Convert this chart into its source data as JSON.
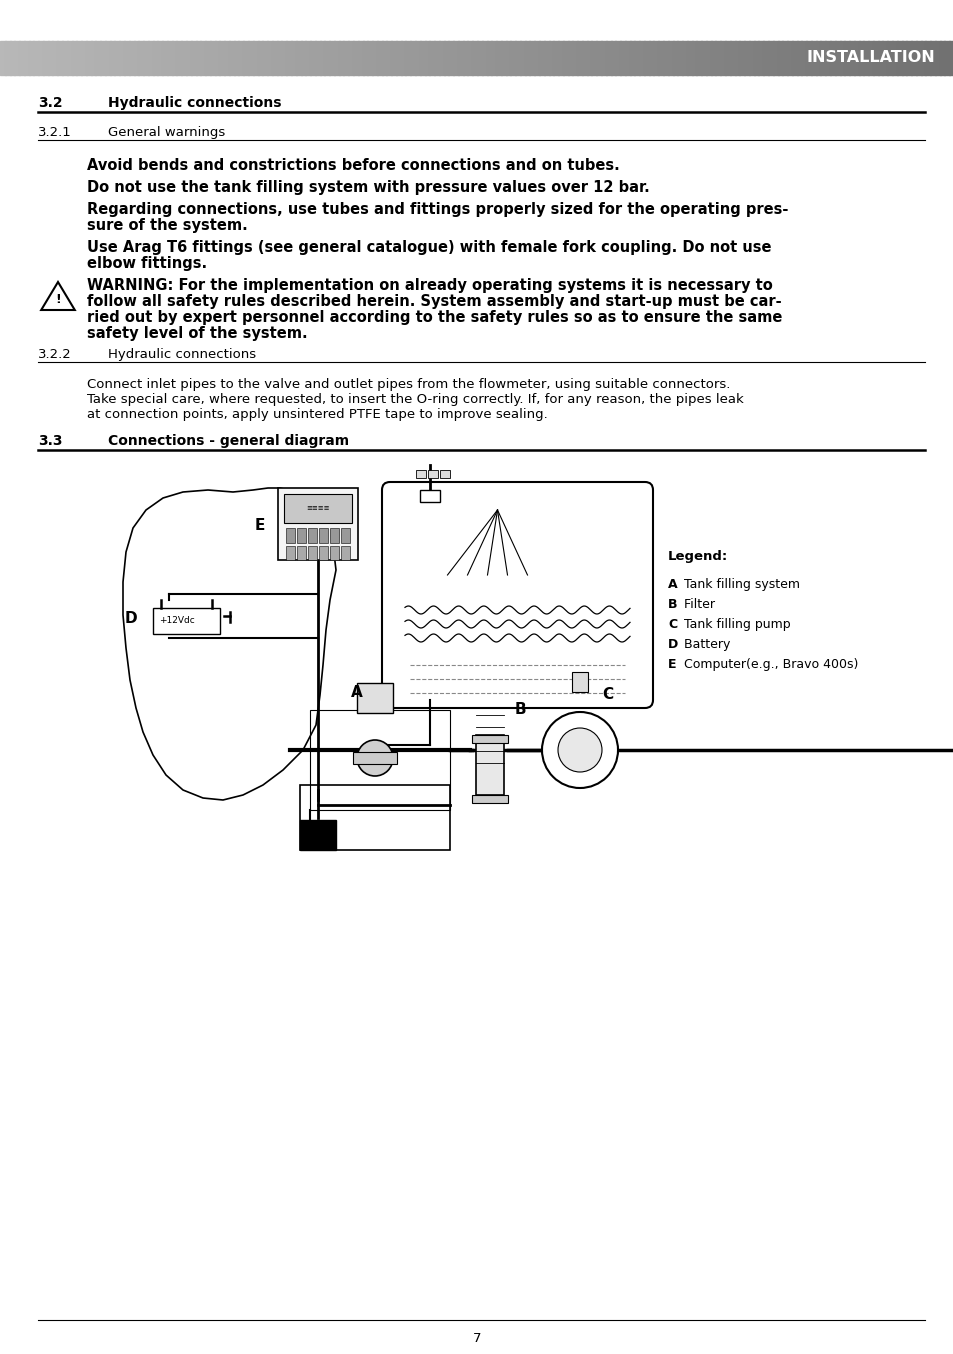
{
  "page_bg": "#ffffff",
  "header_text": "INSTALLATION",
  "header_text_color": "#ffffff",
  "section_32_num": "3.2",
  "section_32_title": "Hydraulic connections",
  "section_321_num": "3.2.1",
  "section_321_title": "General warnings",
  "bold_para1": "Avoid bends and constrictions before connections and on tubes.",
  "bold_para2": "Do not use the tank filling system with pressure values over 12 bar.",
  "bold_para3_l1": "Regarding connections, use tubes and fittings properly sized for the operating pres-",
  "bold_para3_l2": "sure of the system.",
  "bold_para4_l1": "Use Arag T6 fittings (see general catalogue) with female fork coupling. Do not use",
  "bold_para4_l2": "elbow fittings.",
  "warn_l1": "WARNING: For the implementation on already operating systems it is necessary to",
  "warn_l2": "follow all safety rules described herein. System assembly and start-up must be car-",
  "warn_l3": "ried out by expert personnel according to the safety rules so as to ensure the same",
  "warn_l4": "safety level of the system.",
  "section_322_num": "3.2.2",
  "section_322_title": "Hydraulic connections",
  "body_322_l1": "Connect inlet pipes to the valve and outlet pipes from the flowmeter, using suitable connectors.",
  "body_322_l2": "Take special care, where requested, to insert the O-ring correctly. If, for any reason, the pipes leak",
  "body_322_l3": "at connection points, apply unsintered PTFE tape to improve sealing.",
  "section_33_num": "3.3",
  "section_33_title": "Connections - general diagram",
  "legend_title": "Legend:",
  "legend_items": [
    {
      "label": "A",
      "desc": " Tank filling system"
    },
    {
      "label": "B",
      "desc": " Filter"
    },
    {
      "label": "C",
      "desc": " Tank filling pump"
    },
    {
      "label": "D",
      "desc": " Battery"
    },
    {
      "label": "E",
      "desc": " Computer(e.g., Bravo 400s)"
    }
  ],
  "page_number": "7"
}
